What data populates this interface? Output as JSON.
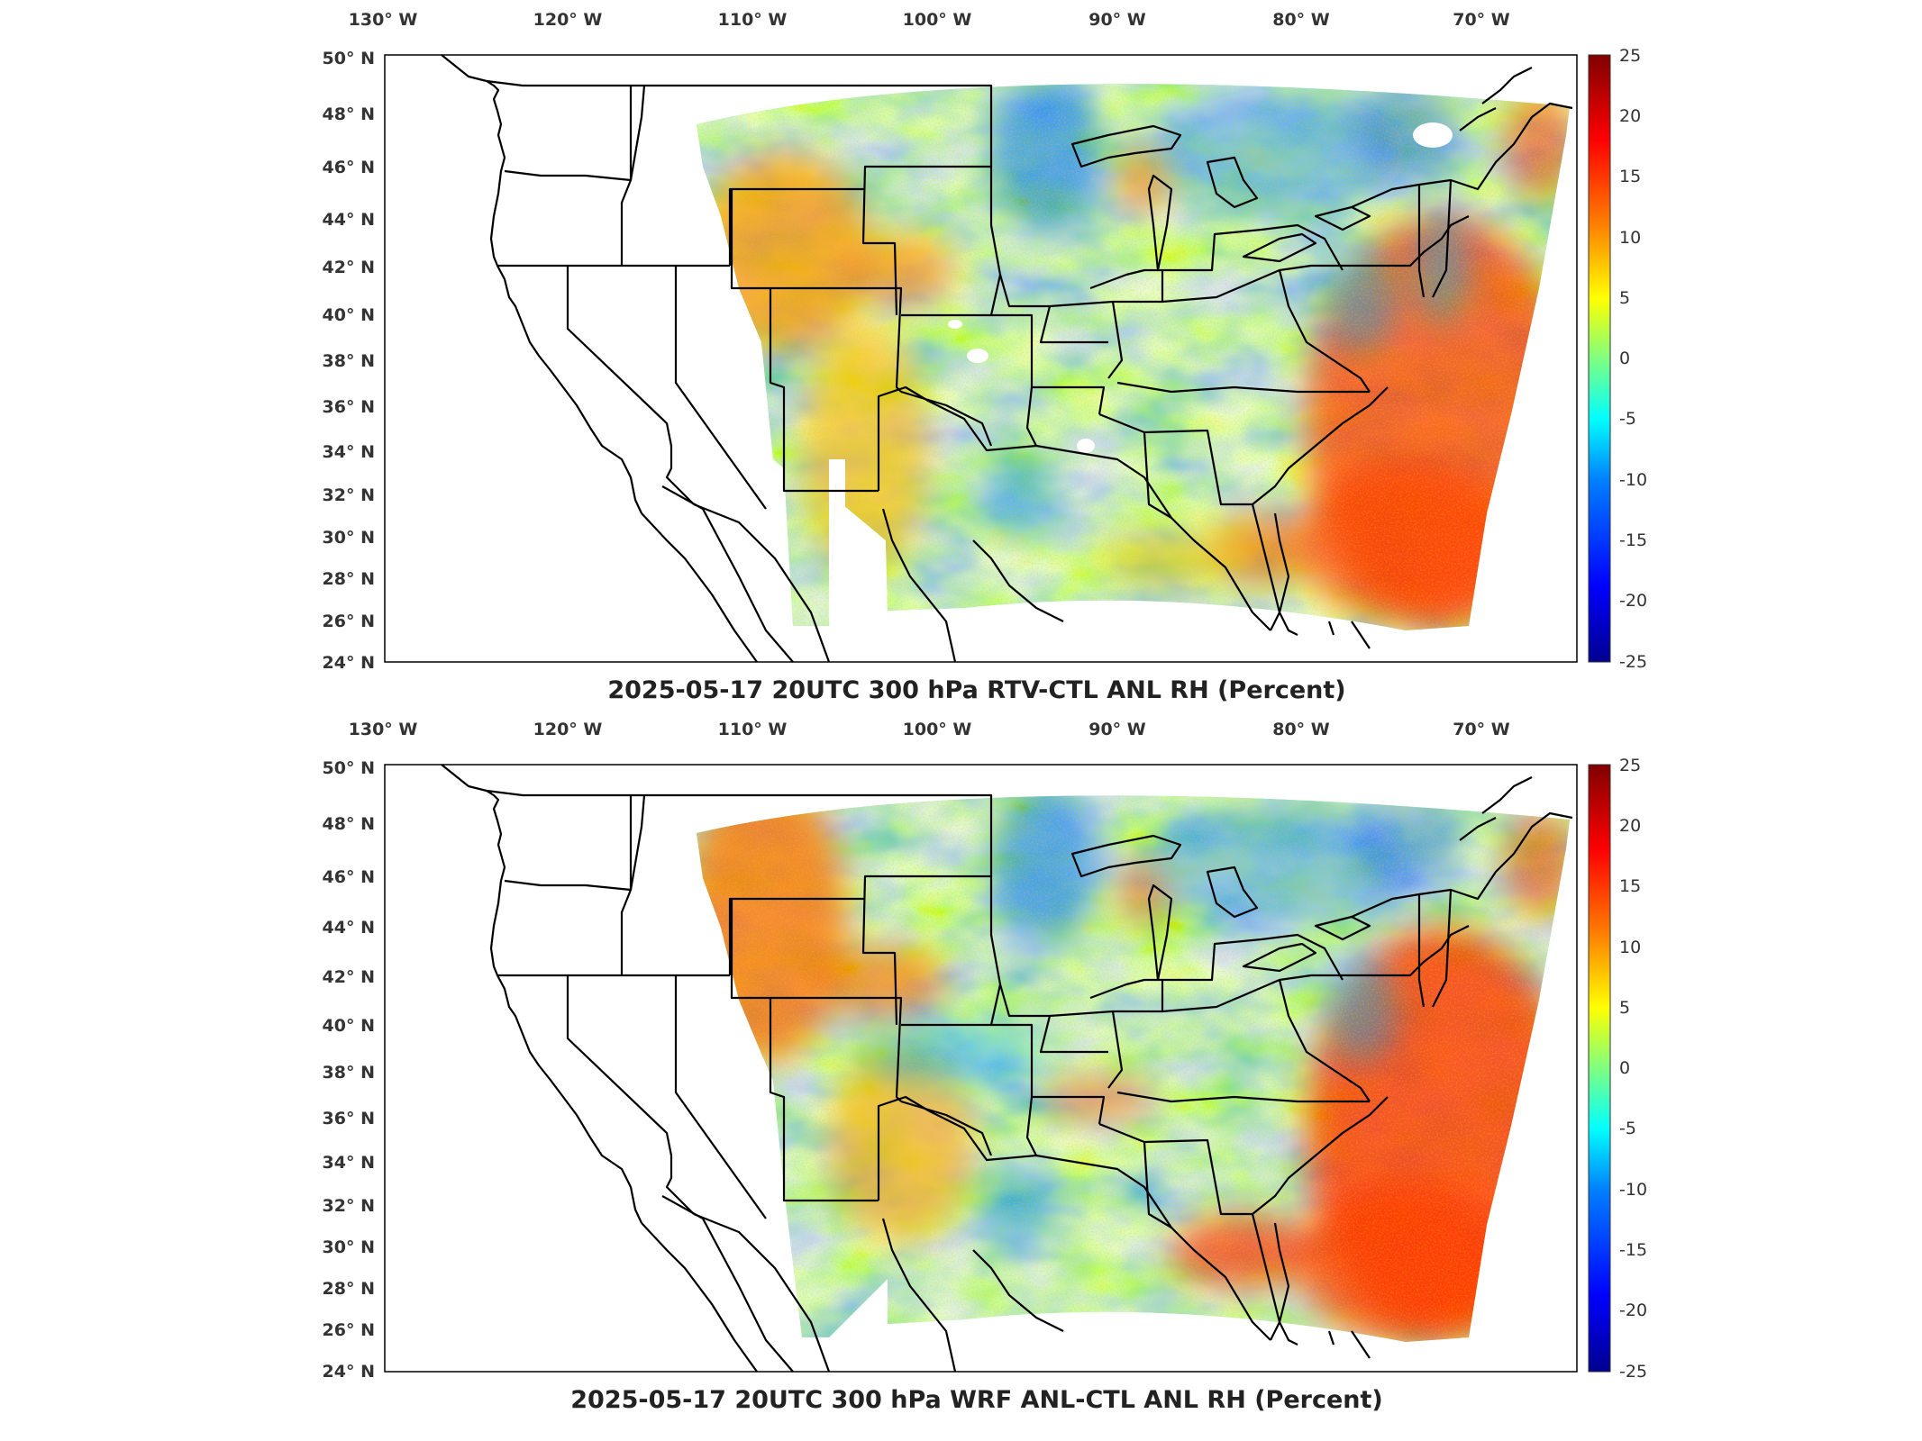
{
  "panels": [
    {
      "title": "2025-05-17 20UTC 300 hPa RTV-CTL ANL RH (Percent)",
      "lon_ticks": [
        "130° W",
        "120° W",
        "110° W",
        "100° W",
        "90° W",
        "80° W",
        "70° W"
      ],
      "lat_ticks": [
        "50° N",
        "48° N",
        "46° N",
        "44° N",
        "42° N",
        "40° N",
        "38° N",
        "36° N",
        "34° N",
        "32° N",
        "30° N",
        "28° N",
        "26° N",
        "24° N"
      ],
      "colorbar_ticks": [
        "25",
        "20",
        "15",
        "10",
        "5",
        "0",
        "-5",
        "-10",
        "-15",
        "-20",
        "-25"
      ]
    },
    {
      "title": "2025-05-17 20UTC 300 hPa WRF ANL-CTL ANL RH (Percent)",
      "lon_ticks": [
        "130° W",
        "120° W",
        "110° W",
        "100° W",
        "90° W",
        "80° W",
        "70° W"
      ],
      "lat_ticks": [
        "50° N",
        "48° N",
        "46° N",
        "44° N",
        "42° N",
        "40° N",
        "38° N",
        "36° N",
        "34° N",
        "32° N",
        "30° N",
        "28° N",
        "26° N",
        "24° N"
      ],
      "colorbar_ticks": [
        "25",
        "20",
        "15",
        "10",
        "5",
        "0",
        "-5",
        "-10",
        "-15",
        "-20",
        "-25"
      ]
    }
  ],
  "colors": {
    "colormap": [
      "#00008f",
      "#0000ff",
      "#0080ff",
      "#00ffff",
      "#80ff80",
      "#ffff00",
      "#ff8000",
      "#ff0000",
      "#800000"
    ],
    "land_outline": "#000000",
    "background": "#ffffff"
  }
}
